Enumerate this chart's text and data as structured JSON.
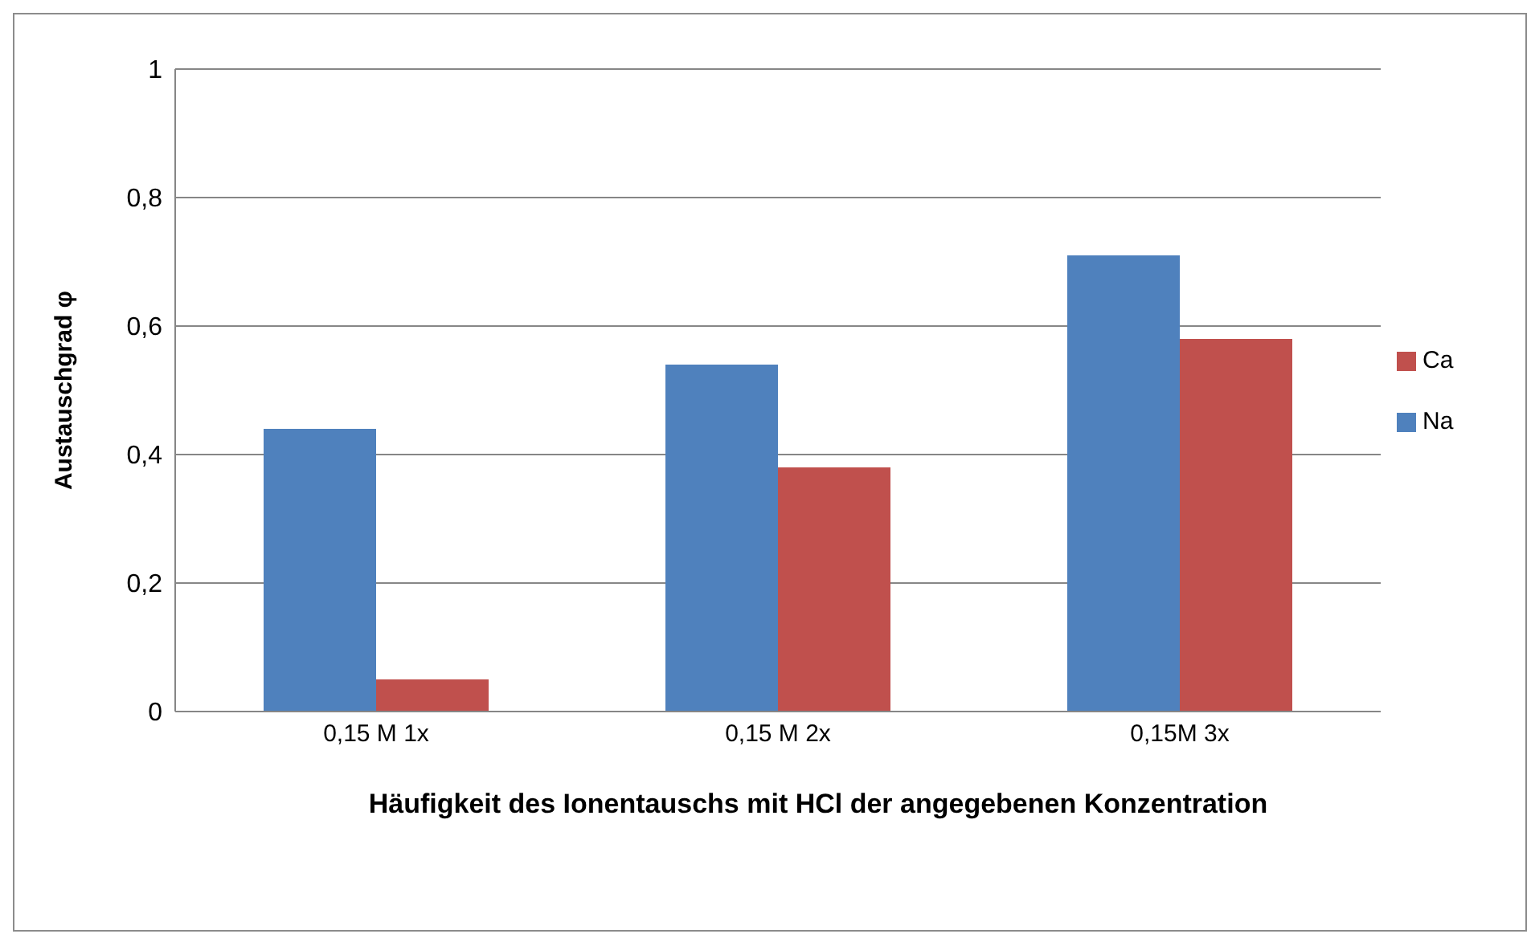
{
  "chart_data": {
    "type": "bar",
    "xlabel": "Häufigkeit des Ionentauschs mit HCl der angegebenen Konzentration",
    "ylabel": "Austauschgrad φ",
    "categories": [
      "0,15 M 1x",
      "0,15 M 2x",
      "0,15M 3x"
    ],
    "series": [
      {
        "name": "Na",
        "color": "#4f81bd",
        "values": [
          0.44,
          0.54,
          0.71
        ]
      },
      {
        "name": "Ca",
        "color": "#c0504d",
        "values": [
          0.05,
          0.38,
          0.58
        ]
      }
    ],
    "ylim": [
      0,
      1
    ],
    "yticks": [
      {
        "value": 0,
        "label": "0"
      },
      {
        "value": 0.2,
        "label": "0,2"
      },
      {
        "value": 0.4,
        "label": "0,4"
      },
      {
        "value": 0.6,
        "label": "0,6"
      },
      {
        "value": 0.8,
        "label": "0,8"
      },
      {
        "value": 1,
        "label": "1"
      }
    ],
    "grid": "y",
    "legend": "right"
  }
}
